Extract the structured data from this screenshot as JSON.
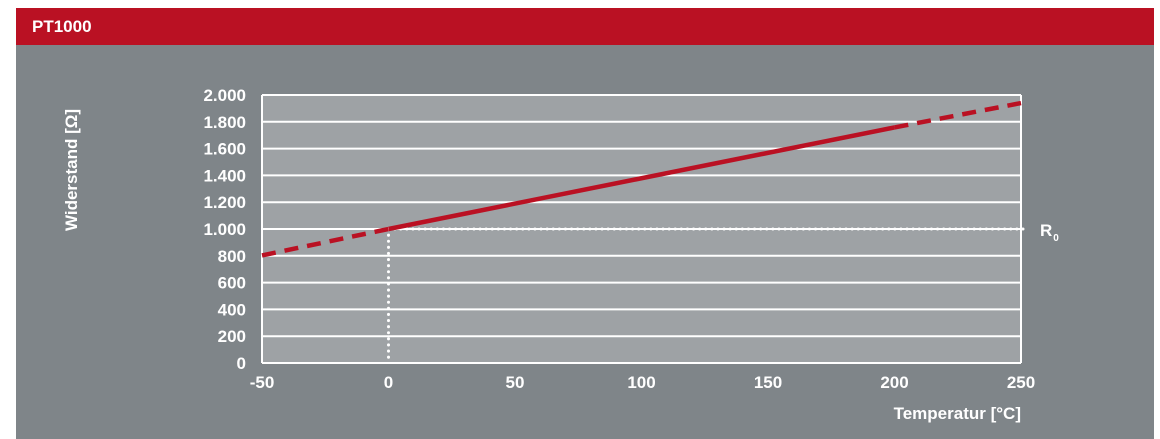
{
  "header": {
    "title": "PT1000"
  },
  "colors": {
    "header_bg": "#BA1123",
    "panel_bg": "#7F8589",
    "plot_bg": "#9EA2A5",
    "grid": "#FFFFFF",
    "curve": "#BA1123",
    "text": "#FFFFFF"
  },
  "chart_data": {
    "type": "line",
    "title": "",
    "xlabel": "Temperatur [°C]",
    "ylabel": "Widerstand [Ω]",
    "xlim": [
      -50,
      250
    ],
    "ylim": [
      0,
      2000
    ],
    "x_ticks": [
      -50,
      0,
      50,
      100,
      150,
      200,
      250
    ],
    "x_tick_labels": [
      "-50",
      "0",
      "50",
      "100",
      "150",
      "200",
      "250"
    ],
    "y_ticks": [
      0,
      200,
      400,
      600,
      800,
      1000,
      1200,
      1400,
      1600,
      1800,
      2000
    ],
    "y_tick_labels": [
      "0",
      "200",
      "400",
      "600",
      "800",
      "1.000",
      "1.200",
      "1.400",
      "1.600",
      "1.800",
      "2.000"
    ],
    "grid": "horizontal",
    "series": [
      {
        "values": [
          {
            "x": -50,
            "y": 803,
            "style": "dashed"
          },
          {
            "x": 0,
            "y": 1000,
            "style": "solid"
          },
          {
            "x": 200,
            "y": 1758,
            "style": "solid"
          },
          {
            "x": 250,
            "y": 1940,
            "style": "dashed"
          }
        ]
      }
    ],
    "reference": {
      "x": 0,
      "y": 1000,
      "label": "R",
      "label_subscript": "0",
      "style": "dotted"
    }
  }
}
